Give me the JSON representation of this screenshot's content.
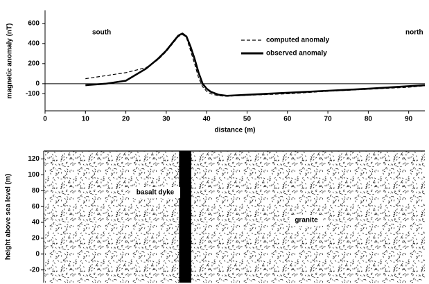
{
  "chart_data": [
    {
      "type": "line",
      "ylabel": "magnetic anomaly (nT)",
      "xlabel": "distance (m)",
      "annotations": [
        "south",
        "north"
      ],
      "x": [
        10,
        15,
        20,
        25,
        28,
        30,
        32,
        33,
        34,
        35,
        36,
        37,
        38,
        39,
        40,
        41,
        43,
        45,
        50,
        60,
        70,
        80,
        90,
        94
      ],
      "series": [
        {
          "name": "computed anomaly",
          "color": "#000",
          "dash": true,
          "values": [
            50,
            80,
            110,
            160,
            240,
            320,
            420,
            470,
            490,
            460,
            330,
            200,
            60,
            -30,
            -75,
            -100,
            -120,
            -125,
            -115,
            -100,
            -75,
            -55,
            -35,
            -20
          ]
        },
        {
          "name": "observed anomaly",
          "color": "#000",
          "dash": false,
          "values": [
            -15,
            0,
            30,
            150,
            250,
            330,
            430,
            480,
            500,
            470,
            370,
            250,
            110,
            0,
            -50,
            -80,
            -110,
            -120,
            -110,
            -90,
            -70,
            -50,
            -25,
            -15
          ]
        }
      ],
      "xlim": [
        0,
        94
      ],
      "xticks": [
        0,
        10,
        20,
        30,
        40,
        50,
        60,
        70,
        80,
        90
      ],
      "ylim": [
        -270,
        730
      ],
      "yticks": [
        -100,
        0,
        200,
        400,
        600
      ]
    },
    {
      "type": "section",
      "ylabel": "height above sea level (m)",
      "xlim": [
        0,
        94
      ],
      "ylim": [
        -36,
        130
      ],
      "yticks": [
        -20,
        0,
        20,
        40,
        60,
        80,
        100,
        120
      ],
      "bodies": [
        {
          "name": "basalt dyke",
          "x": [
            33.4,
            36.4
          ]
        }
      ],
      "host": "granite"
    }
  ]
}
